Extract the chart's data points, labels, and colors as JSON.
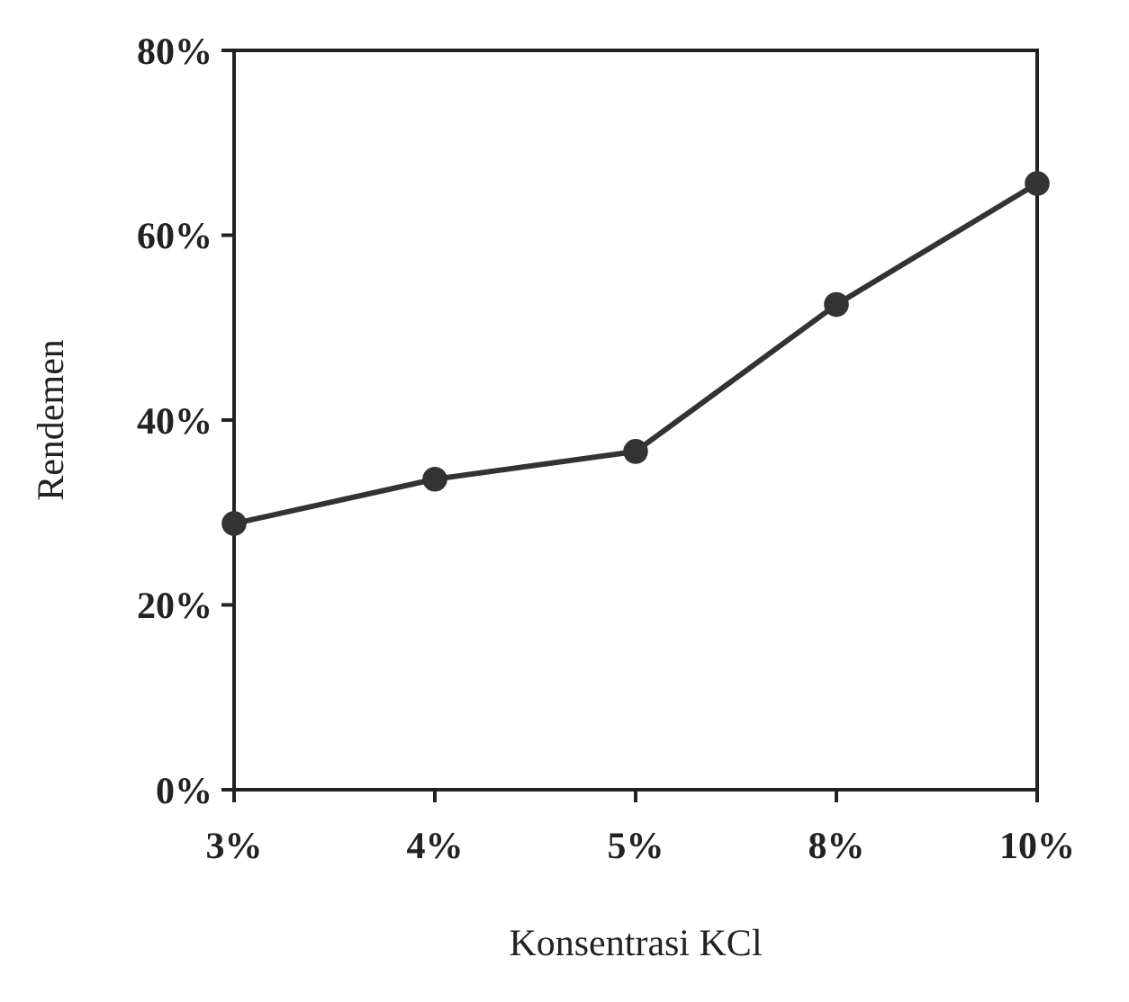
{
  "chart_data": {
    "type": "line",
    "xlabel": "Konsentrasi KCl",
    "ylabel": "Rendemen",
    "categories": [
      "3%",
      "4%",
      "5%",
      "8%",
      "10%"
    ],
    "series": [
      {
        "color": "#333333",
        "values": [
          28.8,
          33.6,
          36.6,
          52.5,
          65.6
        ]
      }
    ],
    "ylim": [
      0,
      80
    ],
    "yticks": [
      {
        "value": 0,
        "label": "0%"
      },
      {
        "value": 20,
        "label": "20%"
      },
      {
        "value": 40,
        "label": "40%"
      },
      {
        "value": 60,
        "label": "60%"
      },
      {
        "value": 80,
        "label": "80%"
      }
    ],
    "grid": false,
    "marker": "circle",
    "line_style": "solid"
  }
}
